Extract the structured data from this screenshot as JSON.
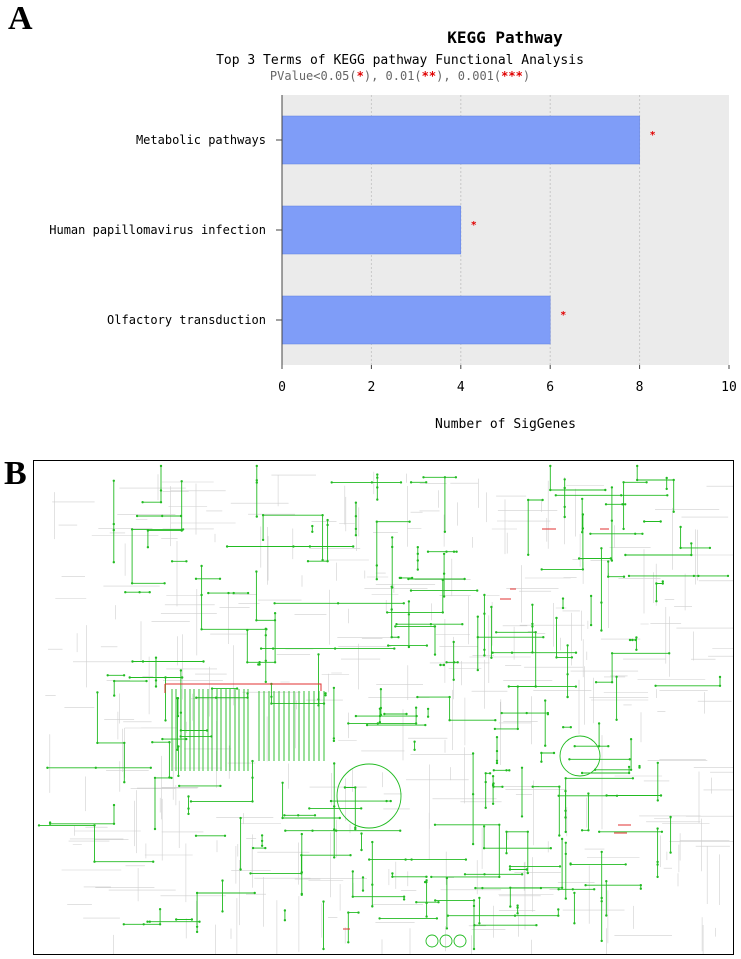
{
  "panels": {
    "a": "A",
    "b": "B"
  },
  "chart_data": {
    "type": "bar",
    "orientation": "horizontal",
    "title": "KEGG Pathway",
    "subtitle": "Top 3 Terms of KEGG pathway Functional Analysis",
    "pvalue_legend": {
      "prefix": "PValue<0.05(",
      "s1": "*",
      "mid1": "), 0.01(",
      "s2": "**",
      "mid2": "), 0.001(",
      "s3": "***",
      "suffix": ")"
    },
    "categories": [
      "Metabolic pathways",
      "Human papillomavirus infection",
      "Olfactory transduction"
    ],
    "values": [
      8,
      4,
      6
    ],
    "significance": [
      "*",
      "*",
      "*"
    ],
    "xlabel": "Number of SigGenes",
    "xlim": [
      0,
      10
    ],
    "xticks": [
      "0",
      "2",
      "4",
      "6",
      "8",
      "10"
    ],
    "grid": true,
    "colors": {
      "bar": "#7f9df8",
      "bar_edge": "#5f7fe0",
      "plot_bg": "#ebebeb",
      "grid": "#c8c8c8",
      "star": "#e00000"
    }
  },
  "pathway_map": {
    "colors": {
      "highlight": "#22bb22",
      "hit": "#e03030",
      "background": "#cfcfcf"
    }
  }
}
